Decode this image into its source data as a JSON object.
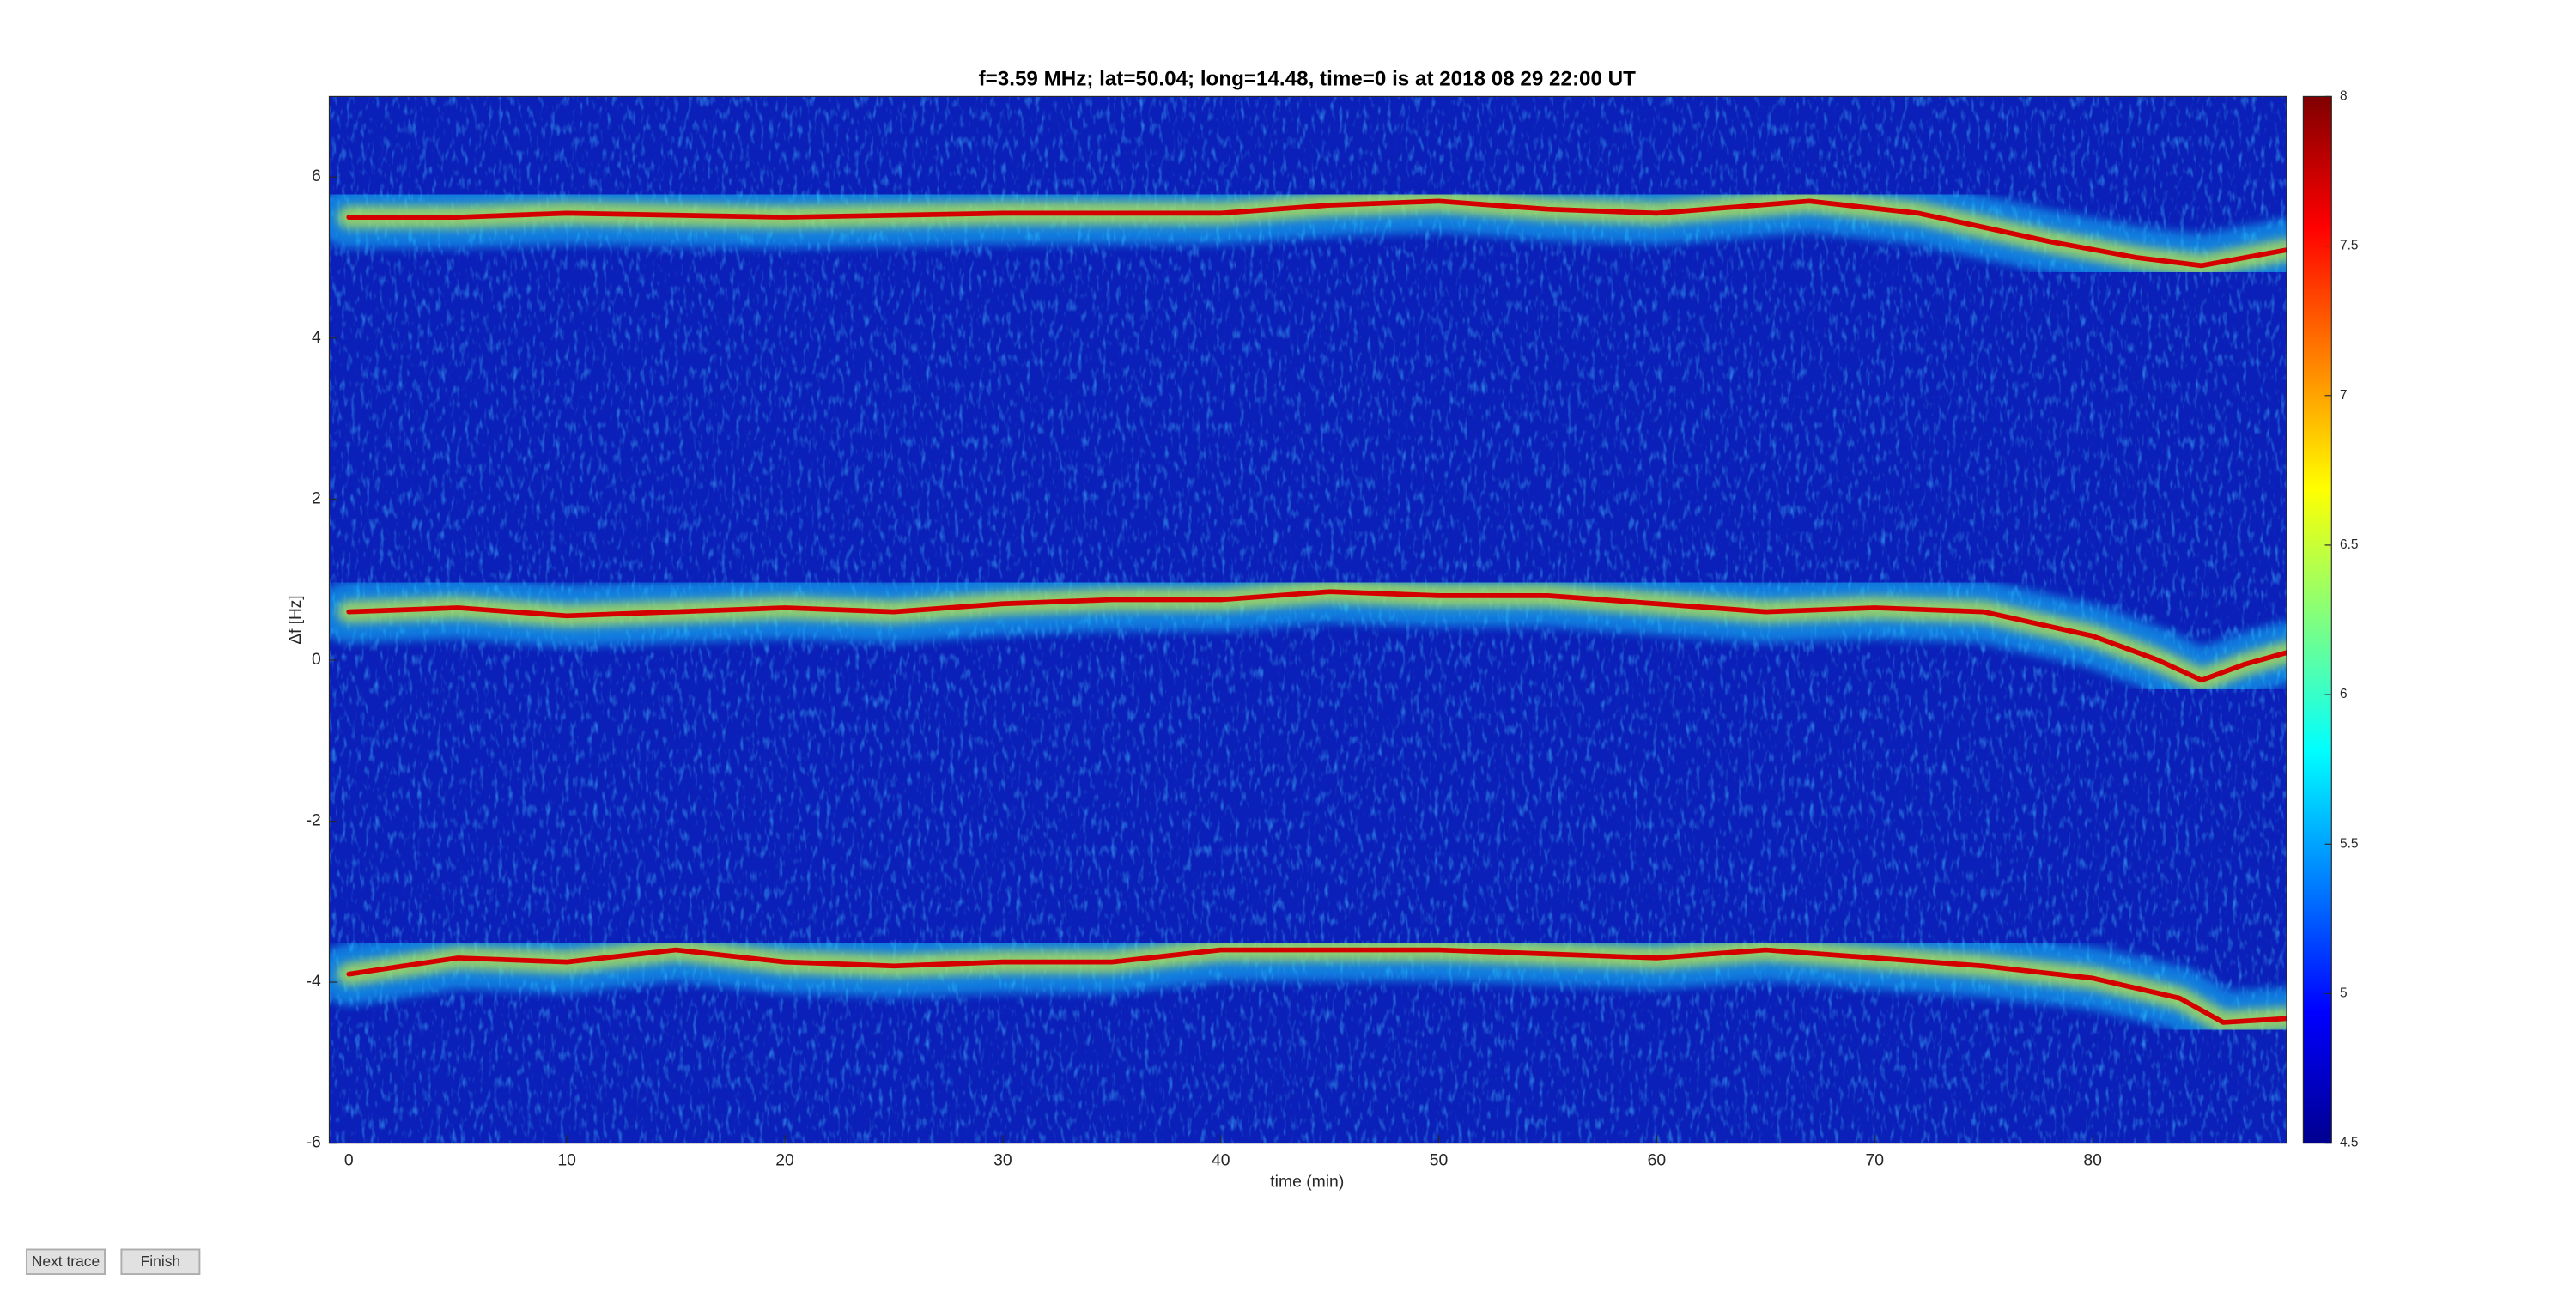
{
  "chart_data": {
    "type": "spectrogram",
    "title": "f=3.59 MHz;  lat=50.04; long=14.48, time=0 is at 2018 08 29 22:00 UT",
    "x_label": "time (min)",
    "y_label": "Δf [Hz]",
    "xlim": [
      -0.9,
      88.9
    ],
    "xticks": [
      0,
      10,
      20,
      30,
      40,
      50,
      60,
      70,
      80
    ],
    "ylim": [
      -6,
      7
    ],
    "yticks": [
      -6,
      -4,
      -2,
      0,
      2,
      4,
      6
    ],
    "clim": [
      4.5,
      8
    ],
    "cticks": [
      4.5,
      5,
      5.5,
      6,
      6.5,
      7,
      7.5,
      8
    ],
    "colormap": "jet",
    "series": [
      {
        "color": "#d40000",
        "x": [
          0,
          5,
          10,
          20,
          30,
          40,
          45,
          50,
          55,
          60,
          67,
          72,
          78,
          82,
          85,
          89
        ],
        "values": [
          5.5,
          5.5,
          5.55,
          5.5,
          5.55,
          5.55,
          5.65,
          5.7,
          5.6,
          5.55,
          5.7,
          5.55,
          5.2,
          5.0,
          4.9,
          5.1
        ]
      },
      {
        "color": "#d40000",
        "x": [
          0,
          5,
          10,
          15,
          20,
          25,
          30,
          35,
          40,
          45,
          50,
          55,
          60,
          65,
          70,
          75,
          80,
          83,
          85,
          87,
          89
        ],
        "values": [
          0.6,
          0.65,
          0.55,
          0.6,
          0.65,
          0.6,
          0.7,
          0.75,
          0.75,
          0.85,
          0.8,
          0.8,
          0.7,
          0.6,
          0.65,
          0.6,
          0.3,
          0.0,
          -0.25,
          -0.05,
          0.1
        ]
      },
      {
        "color": "#d40000",
        "x": [
          0,
          5,
          10,
          15,
          20,
          25,
          30,
          35,
          40,
          45,
          50,
          55,
          60,
          65,
          70,
          75,
          80,
          84,
          86,
          89
        ],
        "values": [
          -3.9,
          -3.7,
          -3.75,
          -3.6,
          -3.75,
          -3.8,
          -3.75,
          -3.75,
          -3.6,
          -3.6,
          -3.6,
          -3.65,
          -3.7,
          -3.6,
          -3.7,
          -3.8,
          -3.95,
          -4.2,
          -4.5,
          -4.45
        ]
      }
    ]
  },
  "buttons": [
    "Next trace",
    "Finish"
  ]
}
